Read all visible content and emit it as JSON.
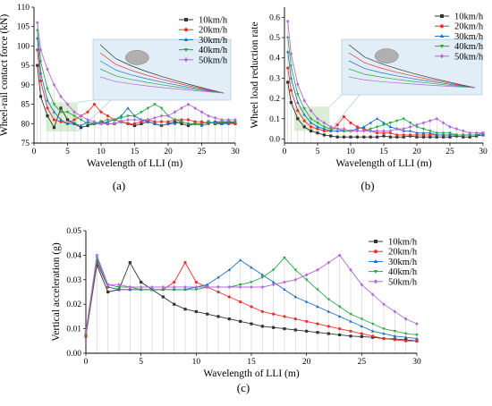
{
  "panel_labels": [
    "(a)",
    "(b)",
    "(c)"
  ],
  "colors": {
    "10km/h": "#333333",
    "20km/h": "#e8332d",
    "30km/h": "#1f6fc6",
    "40km/h": "#2aa845",
    "50km/h": "#b36ad8"
  },
  "chart_data": [
    {
      "id": "a",
      "type": "line",
      "xlabel": "Wavelength of LLI (m)",
      "ylabel": "Wheel-rail contact force (kN)",
      "xlim": [
        0,
        30
      ],
      "ylim": [
        75,
        110
      ],
      "xticks": [
        0,
        5,
        10,
        15,
        20,
        25,
        30
      ],
      "yticks": [
        75,
        80,
        85,
        90,
        95,
        100,
        105,
        110
      ],
      "legend": "right",
      "x": [
        0.5,
        1,
        2,
        3,
        4,
        5,
        6,
        7,
        8,
        9,
        10,
        11,
        12,
        13,
        14,
        15,
        16,
        17,
        18,
        19,
        20,
        21,
        22,
        23,
        24,
        25,
        26,
        27,
        28,
        29,
        30
      ],
      "series": [
        {
          "name": "10km/h",
          "marker": "square",
          "values": [
            95,
            87,
            82,
            79,
            84,
            81,
            80,
            79,
            79.5,
            80,
            80.5,
            80,
            80,
            80.5,
            80,
            79.5,
            80,
            80.5,
            80,
            79.5,
            80,
            80.5,
            80,
            79.5,
            80,
            80,
            80.5,
            80,
            80,
            80.5,
            80
          ]
        },
        {
          "name": "20km/h",
          "marker": "circle",
          "values": [
            99,
            91,
            84,
            81,
            80.5,
            80,
            81,
            82,
            83,
            85,
            83,
            82,
            81,
            80.5,
            80,
            80,
            80.5,
            81,
            80.5,
            80.5,
            80.5,
            81,
            81,
            81,
            80.5,
            80.5,
            80,
            80.5,
            80.5,
            80,
            80
          ]
        },
        {
          "name": "30km/h",
          "marker": "triangle-up",
          "values": [
            102,
            93,
            86,
            83,
            81,
            80,
            80,
            79.5,
            80.5,
            80,
            80,
            80.5,
            81,
            82,
            84,
            82,
            81,
            80.5,
            80,
            79.5,
            80,
            80,
            80.5,
            80,
            80,
            79.5,
            80,
            80.5,
            80,
            80,
            80.5
          ]
        },
        {
          "name": "40km/h",
          "marker": "triangle-down",
          "values": [
            104,
            96,
            89,
            85,
            83,
            83,
            82,
            81,
            80,
            80,
            80.5,
            81,
            81,
            81.5,
            82,
            82,
            83,
            84,
            85,
            84,
            82,
            81,
            80.5,
            80,
            80,
            80,
            80.5,
            80,
            80.5,
            80.5,
            80.5
          ]
        },
        {
          "name": "50km/h",
          "marker": "diamond",
          "values": [
            106,
            99,
            94,
            90,
            87,
            85,
            83,
            82,
            81,
            80.5,
            80,
            80,
            80,
            80.5,
            81,
            81,
            81,
            81,
            81.5,
            82,
            82,
            83,
            84,
            85,
            84,
            83,
            82,
            81.5,
            81,
            81,
            81
          ]
        }
      ]
    },
    {
      "id": "b",
      "type": "line",
      "xlabel": "Wavelength of LLI (m)",
      "ylabel": "Wheel load reduction rate",
      "xlim": [
        0,
        30
      ],
      "ylim": [
        -0.02,
        0.65
      ],
      "xticks": [
        0,
        5,
        10,
        15,
        20,
        25,
        30
      ],
      "yticks": [
        0.0,
        0.1,
        0.2,
        0.3,
        0.4,
        0.5,
        0.6
      ],
      "legend": "right",
      "x": [
        0.5,
        1,
        2,
        3,
        4,
        5,
        6,
        7,
        8,
        9,
        10,
        11,
        12,
        13,
        14,
        15,
        16,
        17,
        18,
        19,
        20,
        21,
        22,
        23,
        24,
        25,
        26,
        27,
        28,
        29,
        30
      ],
      "series": [
        {
          "name": "10km/h",
          "marker": "square",
          "values": [
            0.28,
            0.18,
            0.1,
            0.06,
            0.04,
            0.03,
            0.02,
            0.015,
            0.01,
            0.01,
            0.01,
            0.01,
            0.01,
            0.01,
            0.01,
            0.015,
            0.01,
            0.01,
            0.01,
            0.015,
            0.01,
            0.01,
            0.01,
            0.01,
            0.01,
            0.01,
            0.015,
            0.01,
            0.01,
            0.015,
            0.02
          ]
        },
        {
          "name": "20km/h",
          "marker": "circle",
          "values": [
            0.35,
            0.24,
            0.14,
            0.09,
            0.06,
            0.05,
            0.04,
            0.04,
            0.07,
            0.11,
            0.08,
            0.06,
            0.05,
            0.04,
            0.03,
            0.03,
            0.03,
            0.02,
            0.02,
            0.02,
            0.02,
            0.02,
            0.02,
            0.02,
            0.02,
            0.02,
            0.02,
            0.02,
            0.02,
            0.02,
            0.02
          ]
        },
        {
          "name": "30km/h",
          "marker": "triangle-up",
          "values": [
            0.43,
            0.3,
            0.18,
            0.12,
            0.08,
            0.06,
            0.05,
            0.04,
            0.04,
            0.04,
            0.04,
            0.05,
            0.06,
            0.08,
            0.1,
            0.08,
            0.06,
            0.05,
            0.04,
            0.04,
            0.03,
            0.03,
            0.03,
            0.02,
            0.02,
            0.02,
            0.02,
            0.02,
            0.02,
            0.02,
            0.02
          ]
        },
        {
          "name": "40km/h",
          "marker": "triangle-down",
          "values": [
            0.5,
            0.36,
            0.22,
            0.15,
            0.1,
            0.08,
            0.06,
            0.05,
            0.05,
            0.04,
            0.04,
            0.04,
            0.04,
            0.05,
            0.06,
            0.07,
            0.08,
            0.09,
            0.1,
            0.08,
            0.06,
            0.05,
            0.04,
            0.03,
            0.03,
            0.03,
            0.02,
            0.02,
            0.02,
            0.02,
            0.03
          ]
        },
        {
          "name": "50km/h",
          "marker": "diamond",
          "values": [
            0.58,
            0.42,
            0.27,
            0.19,
            0.14,
            0.1,
            0.08,
            0.06,
            0.05,
            0.05,
            0.04,
            0.04,
            0.04,
            0.04,
            0.04,
            0.04,
            0.04,
            0.05,
            0.05,
            0.06,
            0.07,
            0.08,
            0.09,
            0.1,
            0.08,
            0.06,
            0.05,
            0.04,
            0.03,
            0.03,
            0.03
          ]
        }
      ]
    },
    {
      "id": "c",
      "type": "line",
      "xlabel": "Wavelength of LLI (m)",
      "ylabel": "Vertical acceleration (g)",
      "xlim": [
        0,
        30
      ],
      "ylim": [
        0,
        0.05
      ],
      "xticks": [
        0,
        5,
        10,
        15,
        20,
        25,
        30
      ],
      "yticks": [
        0.0,
        0.01,
        0.02,
        0.03,
        0.04,
        0.05
      ],
      "ytick_labels": [
        "0.00",
        "0.01",
        "0.02",
        "0.03",
        "0.04",
        "0.05"
      ],
      "legend": "top-right",
      "x": [
        0,
        1,
        2,
        3,
        4,
        5,
        6,
        7,
        8,
        9,
        10,
        11,
        12,
        13,
        14,
        15,
        16,
        17,
        18,
        19,
        20,
        21,
        22,
        23,
        24,
        25,
        26,
        27,
        28,
        29,
        30
      ],
      "series": [
        {
          "name": "10km/h",
          "marker": "square",
          "values": [
            0.007,
            0.036,
            0.025,
            0.026,
            0.037,
            0.029,
            0.026,
            0.023,
            0.02,
            0.018,
            0.017,
            0.016,
            0.015,
            0.014,
            0.013,
            0.012,
            0.011,
            0.0105,
            0.01,
            0.0095,
            0.009,
            0.0085,
            0.008,
            0.0075,
            0.007,
            0.0068,
            0.0065,
            0.006,
            0.0058,
            0.0055,
            0.005
          ]
        },
        {
          "name": "20km/h",
          "marker": "circle",
          "values": [
            0.007,
            0.037,
            0.027,
            0.026,
            0.026,
            0.026,
            0.026,
            0.026,
            0.029,
            0.037,
            0.029,
            0.027,
            0.025,
            0.023,
            0.021,
            0.019,
            0.017,
            0.016,
            0.015,
            0.014,
            0.013,
            0.012,
            0.011,
            0.01,
            0.009,
            0.008,
            0.007,
            0.006,
            0.0055,
            0.005,
            0.005
          ]
        },
        {
          "name": "30km/h",
          "marker": "triangle-up",
          "values": [
            0.008,
            0.038,
            0.027,
            0.026,
            0.026,
            0.026,
            0.026,
            0.026,
            0.026,
            0.026,
            0.027,
            0.028,
            0.031,
            0.034,
            0.038,
            0.035,
            0.032,
            0.029,
            0.026,
            0.023,
            0.021,
            0.019,
            0.017,
            0.015,
            0.013,
            0.011,
            0.009,
            0.008,
            0.007,
            0.0065,
            0.006
          ]
        },
        {
          "name": "40km/h",
          "marker": "triangle-down",
          "values": [
            0.008,
            0.039,
            0.028,
            0.027,
            0.027,
            0.026,
            0.026,
            0.026,
            0.026,
            0.026,
            0.026,
            0.027,
            0.027,
            0.027,
            0.028,
            0.029,
            0.031,
            0.034,
            0.039,
            0.034,
            0.03,
            0.026,
            0.022,
            0.019,
            0.016,
            0.014,
            0.012,
            0.01,
            0.009,
            0.008,
            0.0075
          ]
        },
        {
          "name": "50km/h",
          "marker": "diamond",
          "values": [
            0.009,
            0.04,
            0.028,
            0.028,
            0.027,
            0.027,
            0.027,
            0.027,
            0.027,
            0.027,
            0.027,
            0.027,
            0.027,
            0.027,
            0.027,
            0.027,
            0.027,
            0.028,
            0.029,
            0.03,
            0.032,
            0.034,
            0.037,
            0.04,
            0.034,
            0.028,
            0.024,
            0.02,
            0.017,
            0.014,
            0.012
          ]
        }
      ]
    }
  ]
}
